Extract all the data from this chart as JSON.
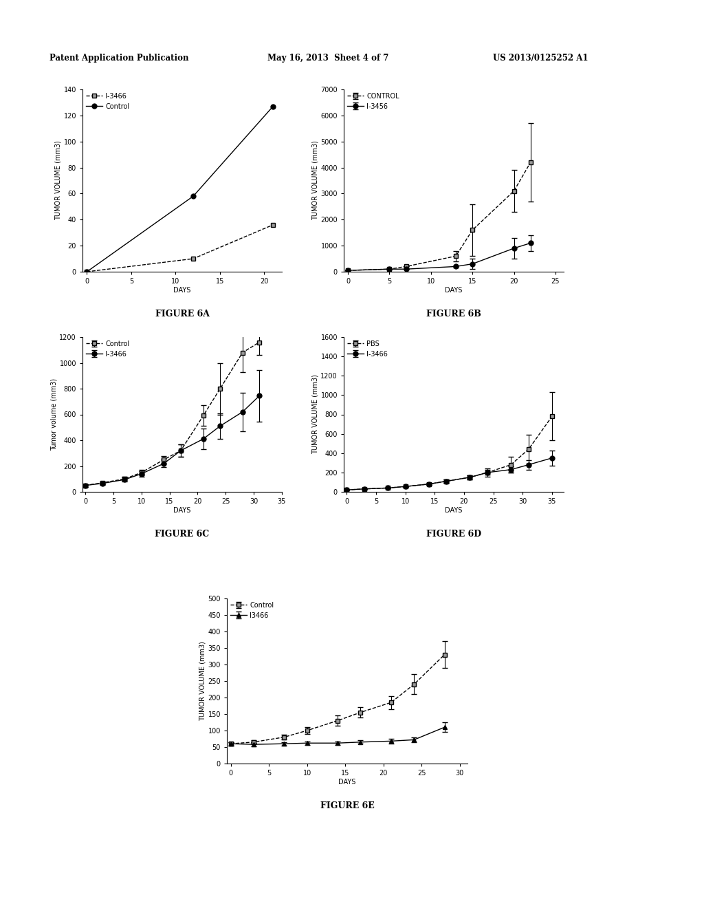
{
  "header_left": "Patent Application Publication",
  "header_mid": "May 16, 2013  Sheet 4 of 7",
  "header_right": "US 2013/0125252 A1",
  "fig6A": {
    "title": "FIGURE 6A",
    "xlabel": "DAYS",
    "ylabel": "TUMOR VOLUME (mm3)",
    "ylim": [
      0,
      140
    ],
    "xlim": [
      -0.5,
      22
    ],
    "yticks": [
      0,
      20,
      40,
      60,
      80,
      100,
      120,
      140
    ],
    "xticks": [
      0,
      5,
      10,
      15,
      20
    ],
    "series": [
      {
        "label": "I-3466",
        "x": [
          0,
          12,
          21
        ],
        "y": [
          0,
          10,
          36
        ],
        "yerr": [
          0,
          0,
          0
        ],
        "marker": "s",
        "linestyle": "--",
        "color": "black"
      },
      {
        "label": "Control",
        "x": [
          0,
          12,
          21
        ],
        "y": [
          0,
          58,
          127
        ],
        "yerr": [
          0,
          0,
          0
        ],
        "marker": "o",
        "linestyle": "-",
        "color": "black"
      }
    ]
  },
  "fig6B": {
    "title": "FIGURE 6B",
    "xlabel": "DAYS",
    "ylabel": "TUMOR VOLUME (mm3)",
    "ylim": [
      0,
      7000
    ],
    "xlim": [
      -0.5,
      26
    ],
    "yticks": [
      0,
      1000,
      2000,
      3000,
      4000,
      5000,
      6000,
      7000
    ],
    "xticks": [
      0,
      5,
      10,
      15,
      20,
      25
    ],
    "series": [
      {
        "label": "CONTROL",
        "x": [
          0,
          5,
          7,
          13,
          15,
          20,
          22
        ],
        "y": [
          50,
          100,
          200,
          600,
          1600,
          3100,
          4200
        ],
        "yerr": [
          0,
          0,
          0,
          200,
          1000,
          800,
          1500
        ],
        "marker": "s",
        "linestyle": "--",
        "color": "black"
      },
      {
        "label": "I-3456",
        "x": [
          0,
          5,
          7,
          13,
          15,
          20,
          22
        ],
        "y": [
          50,
          100,
          100,
          200,
          300,
          900,
          1100
        ],
        "yerr": [
          0,
          0,
          0,
          50,
          200,
          400,
          300
        ],
        "marker": "o",
        "linestyle": "-",
        "color": "black"
      }
    ]
  },
  "fig6C": {
    "title": "FIGURE 6C",
    "xlabel": "DAYS",
    "ylabel": "Tumor volume (mm3)",
    "ylim": [
      0,
      1200
    ],
    "xlim": [
      -0.5,
      35
    ],
    "yticks": [
      0,
      200,
      400,
      600,
      800,
      1000,
      1200
    ],
    "xticks": [
      0,
      5,
      10,
      15,
      20,
      25,
      30,
      35
    ],
    "series": [
      {
        "label": "Control",
        "x": [
          0,
          3,
          7,
          10,
          14,
          17,
          21,
          24,
          28,
          31
        ],
        "y": [
          50,
          70,
          100,
          150,
          250,
          320,
          590,
          800,
          1080,
          1160
        ],
        "yerr": [
          10,
          10,
          15,
          20,
          30,
          50,
          80,
          200,
          150,
          100
        ],
        "marker": "s",
        "linestyle": "--",
        "color": "black"
      },
      {
        "label": "I-3466",
        "x": [
          0,
          3,
          7,
          10,
          14,
          17,
          21,
          24,
          28,
          31
        ],
        "y": [
          50,
          65,
          95,
          140,
          220,
          320,
          410,
          510,
          620,
          745
        ],
        "yerr": [
          10,
          10,
          15,
          20,
          30,
          50,
          80,
          100,
          150,
          200
        ],
        "marker": "o",
        "linestyle": "-",
        "color": "black"
      }
    ]
  },
  "fig6D": {
    "title": "FIGURE 6D",
    "xlabel": "DAYS",
    "ylabel": "TUMOR VOLUME (mm3)",
    "ylim": [
      0,
      1600
    ],
    "xlim": [
      -0.5,
      37
    ],
    "yticks": [
      0,
      200,
      400,
      600,
      800,
      1000,
      1200,
      1400,
      1600
    ],
    "xticks": [
      0,
      5,
      10,
      15,
      20,
      25,
      30,
      35
    ],
    "series": [
      {
        "label": "PBS",
        "x": [
          0,
          3,
          7,
          10,
          14,
          17,
          21,
          24,
          28,
          31,
          35
        ],
        "y": [
          20,
          30,
          40,
          55,
          80,
          110,
          150,
          200,
          280,
          440,
          780
        ],
        "yerr": [
          5,
          5,
          5,
          5,
          10,
          15,
          20,
          40,
          80,
          150,
          250
        ],
        "marker": "s",
        "linestyle": "--",
        "color": "black"
      },
      {
        "label": "I-3466",
        "x": [
          0,
          3,
          7,
          10,
          14,
          17,
          21,
          24,
          28,
          31,
          35
        ],
        "y": [
          20,
          30,
          40,
          55,
          80,
          110,
          150,
          200,
          230,
          280,
          350
        ],
        "yerr": [
          5,
          5,
          5,
          5,
          10,
          15,
          20,
          25,
          30,
          50,
          80
        ],
        "marker": "o",
        "linestyle": "-",
        "color": "black"
      }
    ]
  },
  "fig6E": {
    "title": "FIGURE 6E",
    "xlabel": "DAYS",
    "ylabel": "TUMOR VOLUME (mm3)",
    "ylim": [
      0,
      500
    ],
    "xlim": [
      -0.5,
      31
    ],
    "yticks": [
      0,
      50,
      100,
      150,
      200,
      250,
      300,
      350,
      400,
      450,
      500
    ],
    "xticks": [
      0,
      5,
      10,
      15,
      20,
      25,
      30
    ],
    "series": [
      {
        "label": "Control",
        "x": [
          0,
          3,
          7,
          10,
          14,
          17,
          21,
          24,
          28
        ],
        "y": [
          60,
          65,
          80,
          100,
          130,
          155,
          185,
          240,
          330
        ],
        "yerr": [
          5,
          5,
          8,
          10,
          15,
          15,
          20,
          30,
          40
        ],
        "marker": "s",
        "linestyle": "--",
        "color": "black"
      },
      {
        "label": "I3466",
        "x": [
          0,
          3,
          7,
          10,
          14,
          17,
          21,
          24,
          28
        ],
        "y": [
          60,
          58,
          60,
          62,
          62,
          65,
          68,
          72,
          110
        ],
        "yerr": [
          5,
          5,
          5,
          5,
          5,
          5,
          8,
          8,
          15
        ],
        "marker": "^",
        "linestyle": "-",
        "color": "black"
      }
    ]
  }
}
